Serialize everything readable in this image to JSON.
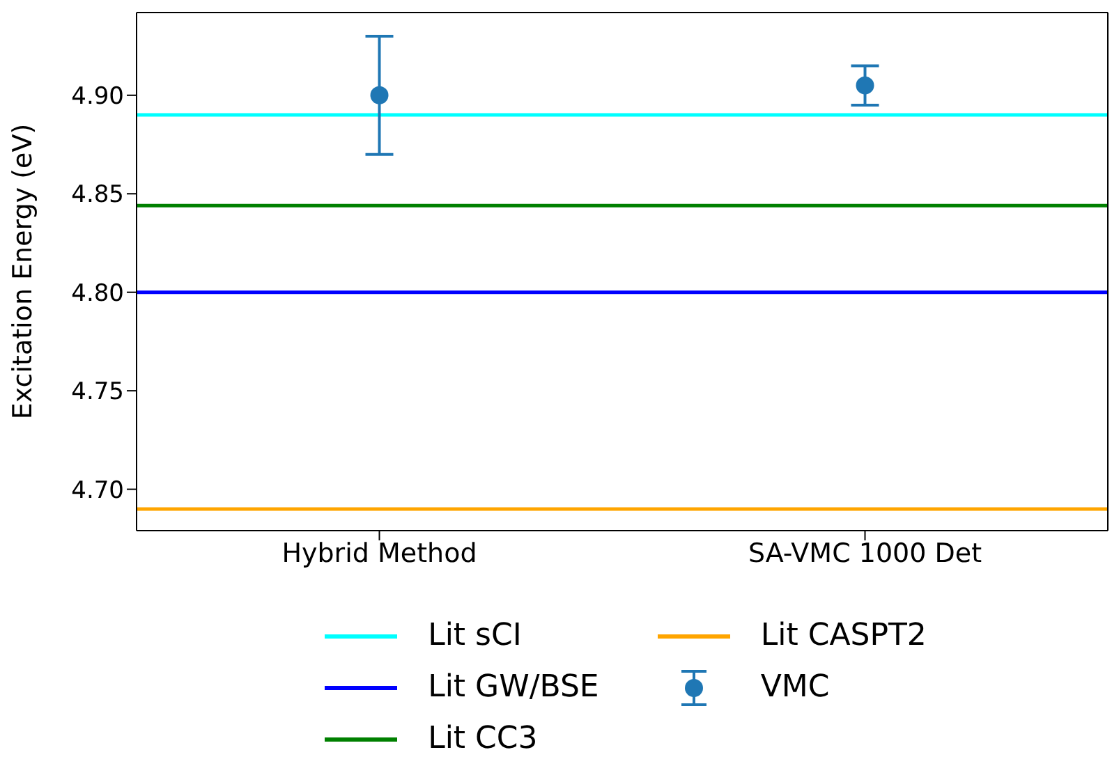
{
  "chart_data": {
    "type": "scatter",
    "ylabel": "Excitation Energy (eV)",
    "categories": [
      "Hybrid Method",
      "SA-VMC 1000 Det"
    ],
    "series": [
      {
        "name": "VMC",
        "color": "#1f77b4",
        "values": [
          4.9,
          4.905
        ],
        "errors": [
          0.03,
          0.01
        ]
      }
    ],
    "ref_lines": [
      {
        "axis": "y",
        "value": 4.89,
        "label": "Lit sCI",
        "color": "#00ffff",
        "line_style": "solid"
      },
      {
        "axis": "y",
        "value": 4.8,
        "label": "Lit GW/BSE",
        "color": "#0000ff",
        "line_style": "solid"
      },
      {
        "axis": "y",
        "value": 4.844,
        "label": "Lit CC3",
        "color": "#008000",
        "line_style": "solid"
      },
      {
        "axis": "y",
        "value": 4.69,
        "label": "Lit CASPT2",
        "color": "#ffa500",
        "line_style": "solid"
      }
    ],
    "ylim": [
      4.679,
      4.942
    ],
    "yticks": [
      {
        "value": 4.7,
        "label": "4.70"
      },
      {
        "value": 4.75,
        "label": "4.75"
      },
      {
        "value": 4.8,
        "label": "4.80"
      },
      {
        "value": 4.85,
        "label": "4.85"
      },
      {
        "value": 4.9,
        "label": "4.90"
      }
    ],
    "marker": "circle",
    "grid": false,
    "legend": "bottom"
  }
}
